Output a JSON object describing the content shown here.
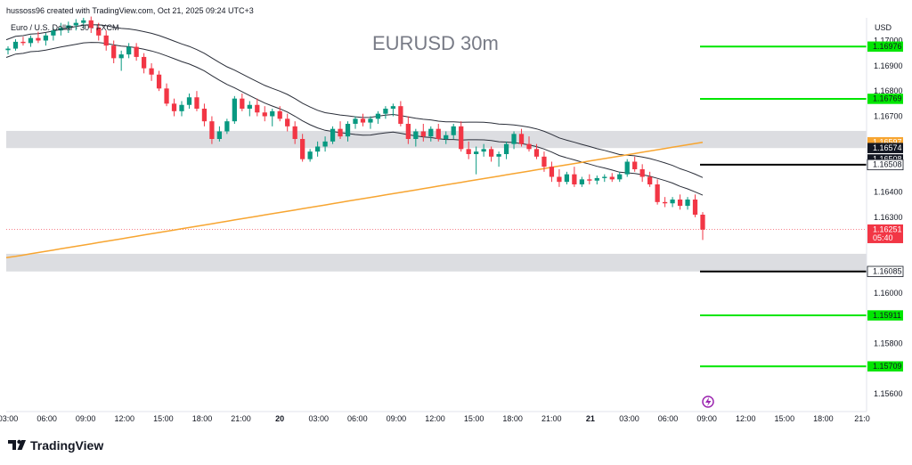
{
  "header": {
    "attribution": "hussoss96 created with TradingView.com, Oct 21, 2025 09:24 UTC+3",
    "symbol": "Euro / U.S. Dollar · 30 · FXCM"
  },
  "price_scale": {
    "currency": "USD"
  },
  "footer": {
    "logo": "TradingView"
  },
  "colors": {
    "up": "#089981",
    "down": "#f23645",
    "level_green": "#00e600",
    "level_black": "#000000",
    "ma_orange": "#f7a531",
    "zone": "#dcdde1"
  },
  "chart_data": {
    "type": "candlestick",
    "title": "EURUSD 30m",
    "ylim": [
      1.1553,
      1.1709
    ],
    "y_ticks": [
      "1.17000",
      "1.16900",
      "1.16800",
      "1.16700",
      "1.16400",
      "1.16300",
      "1.16000",
      "1.15800",
      "1.15600"
    ],
    "x_ticks": [
      "03:00",
      "06:00",
      "09:00",
      "12:00",
      "15:00",
      "18:00",
      "21:00",
      "20",
      "03:00",
      "06:00",
      "09:00",
      "12:00",
      "15:00",
      "18:00",
      "21:00",
      "21",
      "03:00",
      "06:00",
      "09:00",
      "12:00",
      "15:00",
      "18:00",
      "21:0"
    ],
    "level_tags": [
      {
        "label": "1.16976",
        "value": 1.16976,
        "style": "green"
      },
      {
        "label": "1.16769",
        "value": 1.16769,
        "style": "green"
      },
      {
        "label": "1.16597",
        "value": 1.16597,
        "style": "orange"
      },
      {
        "label": "1.16574",
        "value": 1.16574,
        "style": "black"
      },
      {
        "label": "1.16508",
        "value": 1.16529,
        "style": "black"
      },
      {
        "label": "1.16508",
        "value": 1.16508,
        "style": "white"
      },
      {
        "label": "1.16251",
        "sub": "05:40",
        "value": 1.16251,
        "style": "red"
      },
      {
        "label": "1.16085",
        "value": 1.16085,
        "style": "white"
      },
      {
        "label": "1.15911",
        "value": 1.15911,
        "style": "green"
      },
      {
        "label": "1.15709",
        "value": 1.15709,
        "style": "green"
      }
    ],
    "horizontal_lines": [
      {
        "value": 1.16976,
        "color": "green"
      },
      {
        "value": 1.16769,
        "color": "green"
      },
      {
        "value": 1.16508,
        "color": "black"
      },
      {
        "value": 1.16085,
        "color": "black"
      },
      {
        "value": 1.15911,
        "color": "green"
      },
      {
        "value": 1.15709,
        "color": "green"
      }
    ],
    "zones": [
      {
        "from": 1.16574,
        "to": 1.16642
      },
      {
        "from": 1.16085,
        "to": 1.16155
      }
    ],
    "current_price": 1.16251,
    "candles": [
      [
        1.16962,
        1.16977,
        1.16945,
        1.16968
      ],
      [
        1.16968,
        1.17005,
        1.1696,
        1.16995
      ],
      [
        1.16995,
        1.17015,
        1.1698,
        1.1699
      ],
      [
        1.1699,
        1.1702,
        1.16975,
        1.1701
      ],
      [
        1.1701,
        1.17035,
        1.1699,
        1.17
      ],
      [
        1.17,
        1.1703,
        1.1698,
        1.1702
      ],
      [
        1.1702,
        1.1705,
        1.17,
        1.1704
      ],
      [
        1.1704,
        1.1707,
        1.1702,
        1.1705
      ],
      [
        1.1705,
        1.17075,
        1.1703,
        1.1706
      ],
      [
        1.1706,
        1.17085,
        1.1704,
        1.1707
      ],
      [
        1.1707,
        1.1709,
        1.1705,
        1.1708
      ],
      [
        1.1708,
        1.17095,
        1.1703,
        1.1705
      ],
      [
        1.1705,
        1.1707,
        1.17,
        1.1702
      ],
      [
        1.1702,
        1.1704,
        1.1696,
        1.1698
      ],
      [
        1.1698,
        1.17,
        1.1691,
        1.1693
      ],
      [
        1.1693,
        1.1696,
        1.1688,
        1.16945
      ],
      [
        1.16945,
        1.1699,
        1.1693,
        1.16975
      ],
      [
        1.16975,
        1.1699,
        1.1692,
        1.16935
      ],
      [
        1.16935,
        1.1695,
        1.1687,
        1.1689
      ],
      [
        1.1689,
        1.1691,
        1.1684,
        1.16865
      ],
      [
        1.16865,
        1.1688,
        1.168,
        1.1681
      ],
      [
        1.1681,
        1.1683,
        1.1674,
        1.1675
      ],
      [
        1.1675,
        1.1677,
        1.167,
        1.1672
      ],
      [
        1.1672,
        1.1676,
        1.167,
        1.16745
      ],
      [
        1.16745,
        1.1679,
        1.1673,
        1.16775
      ],
      [
        1.16775,
        1.168,
        1.1672,
        1.1673
      ],
      [
        1.1673,
        1.1675,
        1.1666,
        1.1668
      ],
      [
        1.1668,
        1.167,
        1.1659,
        1.1661
      ],
      [
        1.1661,
        1.1666,
        1.166,
        1.1664
      ],
      [
        1.1664,
        1.1669,
        1.1663,
        1.1668
      ],
      [
        1.1668,
        1.1678,
        1.1667,
        1.1677
      ],
      [
        1.1677,
        1.1679,
        1.1672,
        1.1673
      ],
      [
        1.1673,
        1.1676,
        1.167,
        1.16745
      ],
      [
        1.16745,
        1.1677,
        1.167,
        1.16715
      ],
      [
        1.16715,
        1.1674,
        1.1668,
        1.167
      ],
      [
        1.167,
        1.1673,
        1.1666,
        1.1672
      ],
      [
        1.1672,
        1.1674,
        1.1668,
        1.1669
      ],
      [
        1.1669,
        1.1671,
        1.1664,
        1.1666
      ],
      [
        1.1666,
        1.1668,
        1.1659,
        1.1661
      ],
      [
        1.1661,
        1.1663,
        1.1652,
        1.1653
      ],
      [
        1.1653,
        1.1657,
        1.1652,
        1.1656
      ],
      [
        1.1656,
        1.166,
        1.1654,
        1.1658
      ],
      [
        1.1658,
        1.1662,
        1.1656,
        1.166
      ],
      [
        1.166,
        1.1666,
        1.1659,
        1.1665
      ],
      [
        1.1665,
        1.1668,
        1.1661,
        1.1662
      ],
      [
        1.1662,
        1.1668,
        1.166,
        1.1667
      ],
      [
        1.1667,
        1.167,
        1.1665,
        1.1669
      ],
      [
        1.1669,
        1.1671,
        1.1666,
        1.16675
      ],
      [
        1.16675,
        1.167,
        1.1665,
        1.1669
      ],
      [
        1.1669,
        1.1672,
        1.1667,
        1.1671
      ],
      [
        1.1671,
        1.1674,
        1.1669,
        1.1673
      ],
      [
        1.1673,
        1.1675,
        1.167,
        1.1674
      ],
      [
        1.1674,
        1.1676,
        1.1666,
        1.1667
      ],
      [
        1.1667,
        1.167,
        1.1659,
        1.1661
      ],
      [
        1.1661,
        1.1665,
        1.1658,
        1.1664
      ],
      [
        1.1664,
        1.1667,
        1.166,
        1.1662
      ],
      [
        1.1662,
        1.1666,
        1.166,
        1.1665
      ],
      [
        1.1665,
        1.1667,
        1.166,
        1.1661
      ],
      [
        1.1661,
        1.1664,
        1.1659,
        1.16625
      ],
      [
        1.16625,
        1.1667,
        1.1661,
        1.1666
      ],
      [
        1.1666,
        1.1668,
        1.1656,
        1.1657
      ],
      [
        1.1657,
        1.166,
        1.1653,
        1.1655
      ],
      [
        1.1655,
        1.1658,
        1.1647,
        1.1656
      ],
      [
        1.1656,
        1.1659,
        1.1654,
        1.1657
      ],
      [
        1.1657,
        1.1658,
        1.1652,
        1.1654
      ],
      [
        1.1654,
        1.1656,
        1.165,
        1.1655
      ],
      [
        1.1655,
        1.166,
        1.1653,
        1.1659
      ],
      [
        1.1659,
        1.1664,
        1.1657,
        1.1663
      ],
      [
        1.1663,
        1.1665,
        1.1658,
        1.1659
      ],
      [
        1.1659,
        1.1662,
        1.1656,
        1.1657
      ],
      [
        1.1657,
        1.1659,
        1.1653,
        1.1654
      ],
      [
        1.1654,
        1.1656,
        1.1648,
        1.165
      ],
      [
        1.165,
        1.1652,
        1.1644,
        1.1646
      ],
      [
        1.1646,
        1.1649,
        1.1642,
        1.1644
      ],
      [
        1.1644,
        1.1648,
        1.1643,
        1.1647
      ],
      [
        1.1647,
        1.165,
        1.1642,
        1.1643
      ],
      [
        1.1643,
        1.1646,
        1.1642,
        1.1645
      ],
      [
        1.1645,
        1.1647,
        1.1643,
        1.16445
      ],
      [
        1.16445,
        1.16465,
        1.1643,
        1.16455
      ],
      [
        1.16455,
        1.1647,
        1.1644,
        1.1646
      ],
      [
        1.1646,
        1.16475,
        1.1644,
        1.1645
      ],
      [
        1.1645,
        1.1648,
        1.1644,
        1.1647
      ],
      [
        1.1647,
        1.1653,
        1.1646,
        1.1652
      ],
      [
        1.1652,
        1.1654,
        1.1648,
        1.1649
      ],
      [
        1.1649,
        1.1651,
        1.1644,
        1.1646
      ],
      [
        1.1646,
        1.1648,
        1.1642,
        1.1643
      ],
      [
        1.1643,
        1.1645,
        1.1635,
        1.1636
      ],
      [
        1.1636,
        1.1638,
        1.1634,
        1.16355
      ],
      [
        1.16355,
        1.1638,
        1.1634,
        1.1637
      ],
      [
        1.1637,
        1.1639,
        1.1633,
        1.16345
      ],
      [
        1.16345,
        1.1638,
        1.1633,
        1.1637
      ],
      [
        1.1637,
        1.1639,
        1.163,
        1.1631
      ],
      [
        1.1631,
        1.1632,
        1.1621,
        1.16251
      ]
    ]
  }
}
